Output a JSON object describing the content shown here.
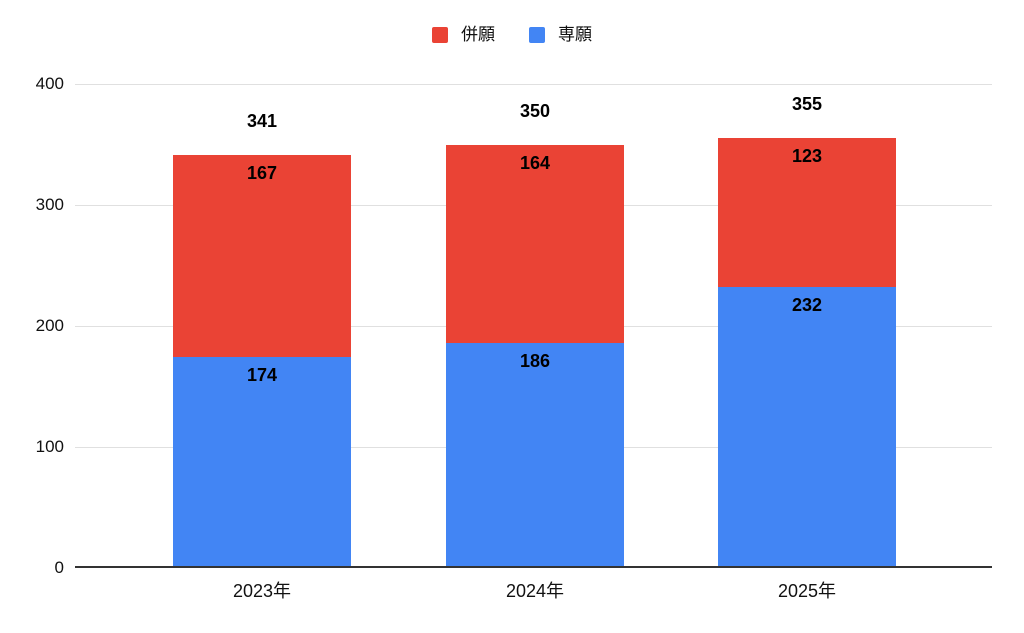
{
  "legend": {
    "items": [
      {
        "label": "併願",
        "color": "#EA4335"
      },
      {
        "label": "専願",
        "color": "#4285F4"
      }
    ]
  },
  "chart_data": {
    "type": "bar",
    "stacked": true,
    "title": "",
    "categories": [
      "2023年",
      "2024年",
      "2025年"
    ],
    "series": [
      {
        "name": "専願",
        "color": "#4285F4",
        "values": [
          174,
          186,
          232
        ]
      },
      {
        "name": "併願",
        "color": "#EA4335",
        "values": [
          167,
          164,
          123
        ]
      }
    ],
    "totals": [
      341,
      350,
      355
    ],
    "xlabel": "",
    "ylabel": "",
    "ylim": [
      0,
      400
    ],
    "yticks": [
      0,
      100,
      200,
      300,
      400
    ],
    "grid": true,
    "legend_position": "top",
    "colors": {
      "grid": "#E0E0E0",
      "axis_line": "#333333",
      "data_label": "#000000",
      "tick_label": "#111111",
      "background": "#FFFFFF"
    }
  }
}
